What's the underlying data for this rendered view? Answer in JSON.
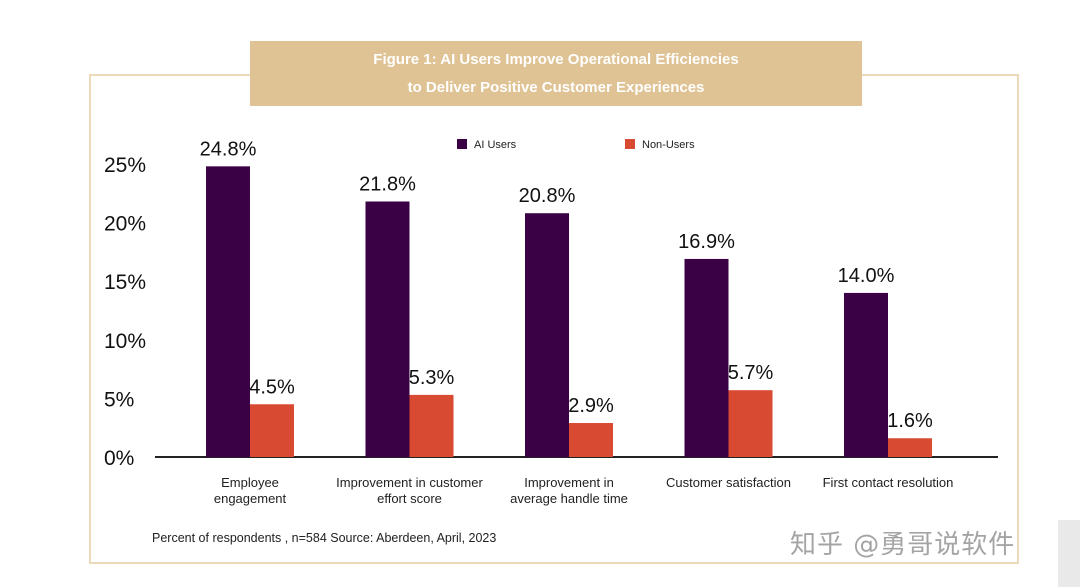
{
  "title_lines": [
    "Figure 1: AI Users Improve Operational Efficiencies",
    "to Deliver Positive Customer Experiences"
  ],
  "source_note": "Percent of respondents , n=584 Source: Aberdeen, April, 2023",
  "watermark": "知乎 @勇哥说软件",
  "colors": {
    "ai_users": "#3a0245",
    "non_users": "#d94a33",
    "frame": "#ecd9b8",
    "title_bg": "#dfc394"
  },
  "chart_data": {
    "type": "bar",
    "categories": [
      [
        "Employee",
        "engagement"
      ],
      [
        "Improvement in customer",
        "effort score"
      ],
      [
        "Improvement in",
        "average handle time"
      ],
      [
        "Customer satisfaction"
      ],
      [
        "First contact resolution"
      ]
    ],
    "series": [
      {
        "name": "AI Users",
        "values": [
          24.8,
          21.8,
          20.8,
          16.9,
          14.0
        ],
        "labels": [
          "24.8%",
          "21.8%",
          "20.8%",
          "16.9%",
          "14.0%"
        ]
      },
      {
        "name": "Non-Users",
        "values": [
          4.5,
          5.3,
          2.9,
          5.7,
          1.6
        ],
        "labels": [
          "4.5%",
          "5.3%",
          "2.9%",
          "5.7%",
          "1.6%"
        ]
      }
    ],
    "y_ticks": [
      "0%",
      "5%",
      "10%",
      "15%",
      "20%",
      "25%"
    ],
    "ylim": [
      0,
      25
    ],
    "legend_position": "top",
    "grid": false
  }
}
